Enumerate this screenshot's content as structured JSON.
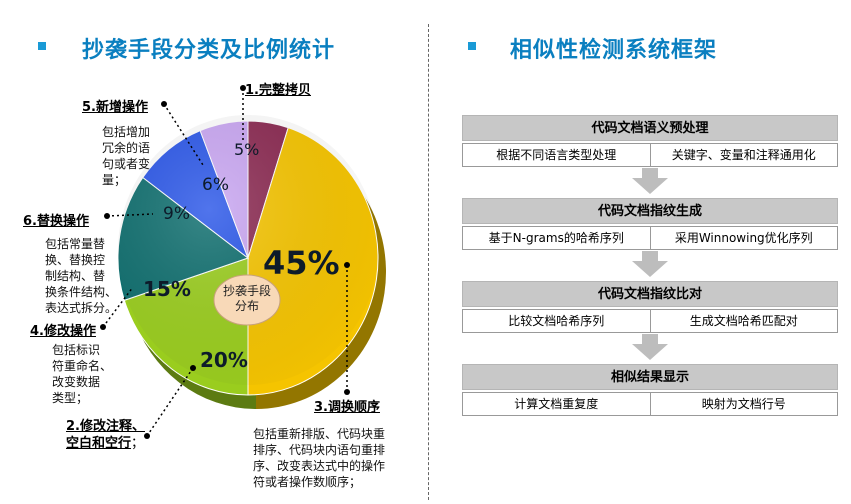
{
  "left_section": {
    "title": "抄袭手段分类及比例统计"
  },
  "right_section": {
    "title": "相似性检测系统框架"
  },
  "chart_data": {
    "type": "pie",
    "center_label": "抄袭手段分布",
    "slices": [
      {
        "label": "1.完整拷贝",
        "value": 5,
        "value_label": "5%",
        "color": "#8b2a52",
        "description": ""
      },
      {
        "label": "3.调换顺序",
        "value": 45,
        "value_label": "45%",
        "color": "#f5c400",
        "description": "包括重新排版、代码块重排序、代码块内语句重排序、改变表达式中的操作符或者操作数顺序；"
      },
      {
        "label": "2.修改注释、空白和空行",
        "value": 20,
        "value_label": "20%",
        "color": "#9acd1e",
        "description": ""
      },
      {
        "label": "4.修改操作",
        "value": 15,
        "value_label": "15%",
        "color": "#0e6e6e",
        "description": "包括标识符重命名、改变数据类型；"
      },
      {
        "label": "6.替换操作",
        "value": 9,
        "value_label": "9%",
        "color": "#2a56e8",
        "description": "包括常量替换、替换控制结构、替换条件结构、表达式拆分。"
      },
      {
        "label": "5.新增操作",
        "value": 6,
        "value_label": "6%",
        "color": "#c9a6f2",
        "description": "包括增加冗余的语句或者变量；"
      }
    ]
  },
  "labels": {
    "l1": "1.完整拷贝",
    "l5": "5.新增操作",
    "l5_desc": [
      "包括增加",
      "冗余的语",
      "句或者变",
      "量；"
    ],
    "l6": "6.替换操作",
    "l6_desc": [
      "包括常量替",
      "换、替换控",
      "制结构、替",
      "换条件结构、",
      "表达式拆分。"
    ],
    "l4": "4.修改操作",
    "l4_desc": [
      "包括标识",
      "符重命名、",
      "改变数据",
      "类型；"
    ],
    "l2_line1": "2.修改注释、",
    "l2_line2": "空白和空行",
    "l2_suffix": "；",
    "l3": "3.调换顺序",
    "l3_desc": [
      "包括重新排版、代码块重",
      "排序、代码块内语句重排",
      "序、改变表达式中的操作",
      "符或者操作数顺序；"
    ]
  },
  "framework": {
    "stages": [
      {
        "title": "代码文档语义预处理",
        "items": [
          "根据不同语言类型处理",
          "关键字、变量和注释通用化"
        ]
      },
      {
        "title": "代码文档指纹生成",
        "items": [
          "基于N-grams的哈希序列",
          "采用Winnowing优化序列"
        ]
      },
      {
        "title": "代码文档指纹比对",
        "items": [
          "比较文档哈希序列",
          "生成文档哈希匹配对"
        ]
      },
      {
        "title": "相似结果显示",
        "items": [
          "计算文档重复度",
          "映射为文档行号"
        ]
      }
    ],
    "arrow_color": "#bdbdbd"
  }
}
